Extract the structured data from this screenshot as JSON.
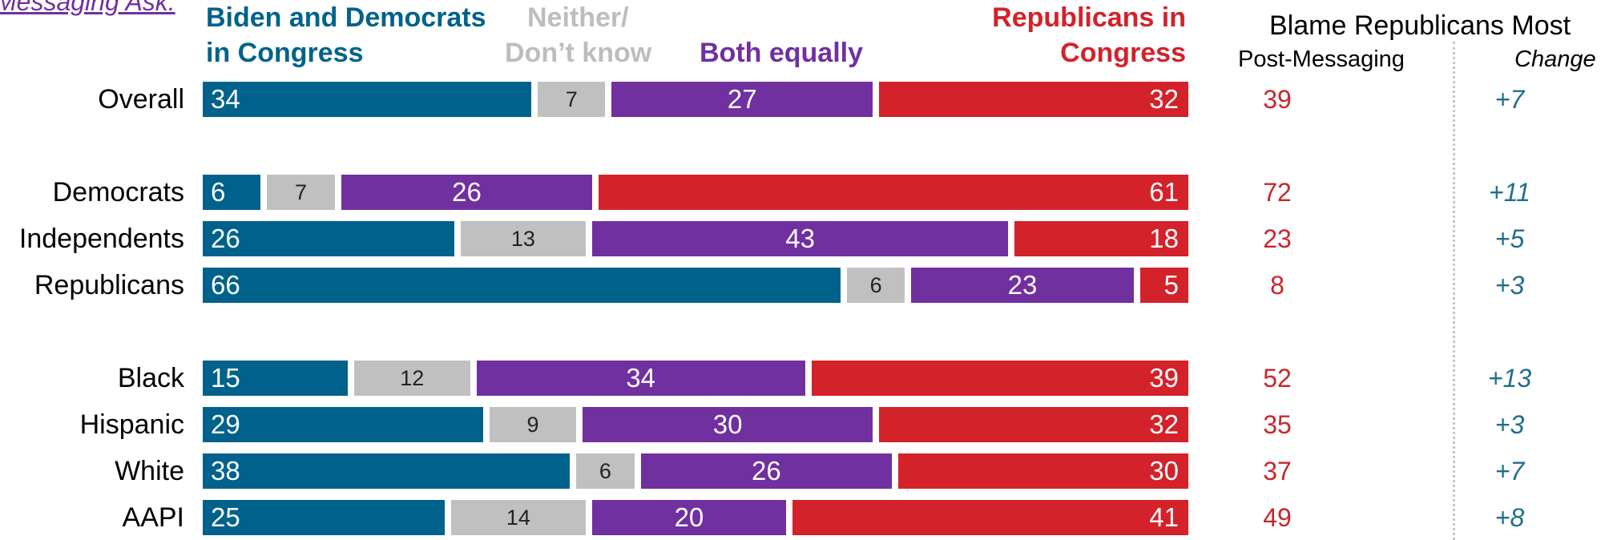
{
  "header_link": "Messaging Ask:",
  "legend": {
    "biden": [
      "Biden and Democrats",
      "in Congress"
    ],
    "neither": [
      "Neither/",
      "Don’t know"
    ],
    "both": "Both equally",
    "republicans": [
      "Republicans in",
      "Congress"
    ]
  },
  "right_panel": {
    "title": "Blame Republicans Most",
    "post_label": "Post-Messaging",
    "change_label": "Change"
  },
  "colors": {
    "biden": "#00628b",
    "neither": "#c0c0c0",
    "both": "#7030a0",
    "republicans": "#d3222a",
    "post_text": "#c9262c",
    "change_text": "#1f6f8b"
  },
  "chart_data": {
    "type": "bar",
    "orientation": "horizontal",
    "stacked": true,
    "categories": [
      "Overall",
      "Democrats",
      "Independents",
      "Republicans",
      "Black",
      "Hispanic",
      "White",
      "AAPI"
    ],
    "groups": [
      [
        0
      ],
      [
        1,
        2,
        3
      ],
      [
        4,
        5,
        6,
        7
      ]
    ],
    "series": [
      {
        "name": "Biden and Democrats in Congress",
        "key": "biden",
        "values": [
          34,
          6,
          26,
          66,
          15,
          29,
          38,
          25
        ]
      },
      {
        "name": "Neither/ Don’t know",
        "key": "neither",
        "values": [
          7,
          7,
          13,
          6,
          12,
          9,
          6,
          14
        ]
      },
      {
        "name": "Both equally",
        "key": "both",
        "values": [
          27,
          26,
          43,
          23,
          34,
          30,
          26,
          20
        ]
      },
      {
        "name": "Republicans in Congress",
        "key": "republicans",
        "values": [
          32,
          61,
          18,
          5,
          39,
          32,
          30,
          41
        ]
      }
    ],
    "post_messaging": [
      39,
      72,
      23,
      8,
      52,
      35,
      37,
      49
    ],
    "change": [
      "+7",
      "+11",
      "+5",
      "+3",
      "+13",
      "+3",
      "+7",
      "+8"
    ]
  }
}
